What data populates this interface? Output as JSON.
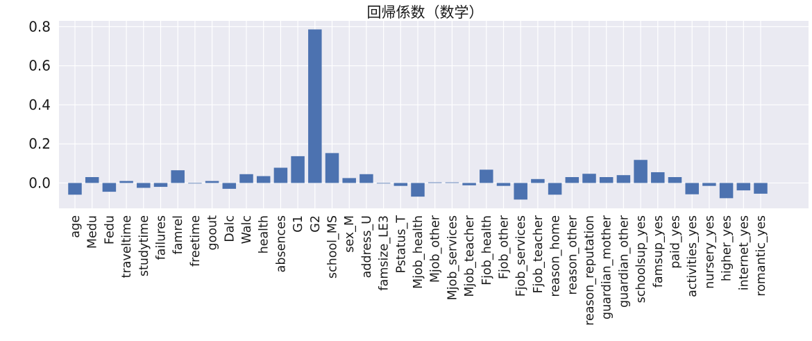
{
  "chart_data": {
    "type": "bar",
    "title": "回帰係数（数学）",
    "xlabel": "",
    "ylabel": "",
    "ylim": [
      -0.13,
      0.83
    ],
    "yticks": [
      0.0,
      0.2,
      0.4,
      0.6,
      0.8
    ],
    "ytick_labels": [
      "0.0",
      "0.2",
      "0.4",
      "0.6",
      "0.8"
    ],
    "grid": true,
    "bar_color": "#4c72b0",
    "background_color": "#eaeaf2",
    "categories": [
      "age",
      "Medu",
      "Fedu",
      "traveltime",
      "studytime",
      "failures",
      "famrel",
      "freetime",
      "goout",
      "Dalc",
      "Walc",
      "health",
      "absences",
      "G1",
      "G2",
      "school_MS",
      "sex_M",
      "address_U",
      "famsize_LE3",
      "Pstatus_T",
      "Mjob_health",
      "Mjob_other",
      "Mjob_services",
      "Mjob_teacher",
      "Fjob_health",
      "Fjob_other",
      "Fjob_services",
      "Fjob_teacher",
      "reason_home",
      "reason_other",
      "reason_reputation",
      "guardian_mother",
      "guardian_other",
      "schoolsup_yes",
      "famsup_yes",
      "paid_yes",
      "activities_yes",
      "nursery_yes",
      "higher_yes",
      "internet_yes",
      "romantic_yes"
    ],
    "values": [
      -0.06,
      0.03,
      -0.045,
      0.01,
      -0.025,
      -0.02,
      0.065,
      0.0,
      0.01,
      -0.03,
      0.045,
      0.035,
      0.078,
      0.137,
      0.786,
      0.153,
      0.025,
      0.045,
      0.0,
      -0.015,
      -0.07,
      0.003,
      0.003,
      -0.012,
      0.068,
      -0.015,
      -0.085,
      0.02,
      -0.06,
      0.03,
      0.047,
      0.03,
      0.04,
      0.118,
      0.055,
      0.03,
      -0.058,
      -0.015,
      -0.078,
      -0.038,
      -0.055
    ]
  }
}
